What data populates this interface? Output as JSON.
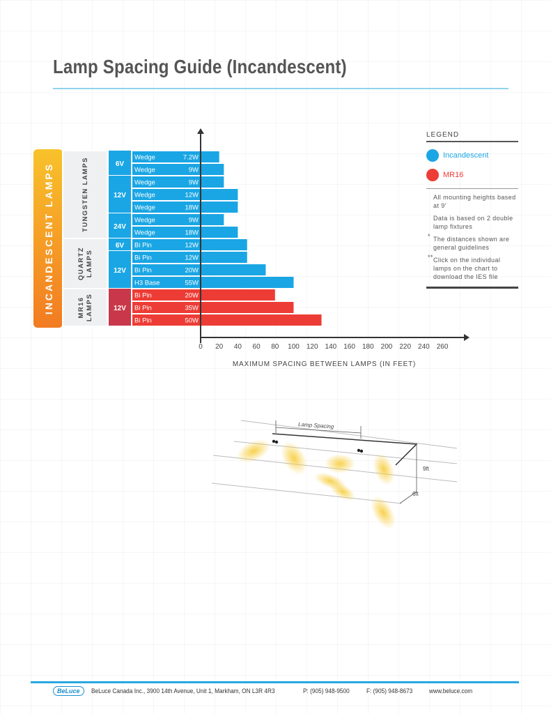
{
  "title": "Lamp Spacing Guide (Incandescent)",
  "chart_data": {
    "type": "bar",
    "orientation": "horizontal",
    "section_label": "INCANDESCENT LAMPS",
    "groups": [
      {
        "label": "TUNGSTEN LAMPS",
        "subgroups": [
          {
            "voltage": "6V",
            "rows": [
              {
                "base": "Wedge",
                "watt": "7.2W",
                "value": 20,
                "type": "Incandescent"
              },
              {
                "base": "Wedge",
                "watt": "9W",
                "value": 25,
                "type": "Incandescent"
              }
            ]
          },
          {
            "voltage": "12V",
            "rows": [
              {
                "base": "Wedge",
                "watt": "9W",
                "value": 25,
                "type": "Incandescent"
              },
              {
                "base": "Wedge",
                "watt": "12W",
                "value": 40,
                "type": "Incandescent"
              },
              {
                "base": "Wedge",
                "watt": "18W",
                "value": 40,
                "type": "Incandescent"
              }
            ]
          },
          {
            "voltage": "24V",
            "rows": [
              {
                "base": "Wedge",
                "watt": "9W",
                "value": 25,
                "type": "Incandescent"
              },
              {
                "base": "Wedge",
                "watt": "18W",
                "value": 40,
                "type": "Incandescent"
              }
            ]
          }
        ]
      },
      {
        "label": "QUARTZ LAMPS",
        "subgroups": [
          {
            "voltage": "6V",
            "rows": [
              {
                "base": "Bi Pin",
                "watt": "12W",
                "value": 50,
                "type": "Incandescent"
              }
            ]
          },
          {
            "voltage": "12V",
            "rows": [
              {
                "base": "Bi Pin",
                "watt": "12W",
                "value": 50,
                "type": "Incandescent"
              },
              {
                "base": "Bi Pin",
                "watt": "20W",
                "value": 70,
                "type": "Incandescent"
              },
              {
                "base": "H3 Base",
                "watt": "55W",
                "value": 100,
                "type": "Incandescent"
              }
            ]
          }
        ]
      },
      {
        "label": "MR16 LAMPS",
        "subgroups": [
          {
            "voltage": "12V",
            "rows": [
              {
                "base": "Bi Pin",
                "watt": "20W",
                "value": 80,
                "type": "MR16"
              },
              {
                "base": "Bi Pin",
                "watt": "35W",
                "value": 100,
                "type": "MR16"
              },
              {
                "base": "Bi Pin",
                "watt": "50W",
                "value": 130,
                "type": "MR16"
              }
            ]
          }
        ]
      }
    ],
    "x_ticks": [
      0,
      20,
      40,
      60,
      80,
      100,
      120,
      140,
      160,
      180,
      200,
      220,
      240,
      260
    ],
    "xlabel": "MAXIMUM SPACING BETWEEN LAMPS (IN FEET)",
    "xlim": [
      0,
      280
    ],
    "colors": {
      "Incandescent": "#1aa6e4",
      "MR16": "#ed3c35"
    }
  },
  "legend": {
    "heading": "LEGEND",
    "items": [
      {
        "label": "Incandescent",
        "color": "#1aa6e4"
      },
      {
        "label": "MR16",
        "color": "#ed3c35"
      }
    ],
    "notes": [
      "All mounting heights based at 9'",
      "Data is based on 2 double lamp fixtures",
      "The distances shown are general guidelines",
      "Click on the individual lamps on the chart to download the IES file"
    ],
    "note_marks": [
      "",
      "",
      "*",
      "**"
    ]
  },
  "illustration": {
    "spacing_label": "Lamp Spacing",
    "height_label": "9ft",
    "width_label": "6ft"
  },
  "footer": {
    "logo": "BeLuce",
    "address": "BeLuce Canada Inc., 3900 14th Avenue, Unit 1, Markham, ON L3R 4R3",
    "phone": "P: (905) 948-9500",
    "fax": "F: (905) 948-8673",
    "website": "www.beluce.com"
  }
}
